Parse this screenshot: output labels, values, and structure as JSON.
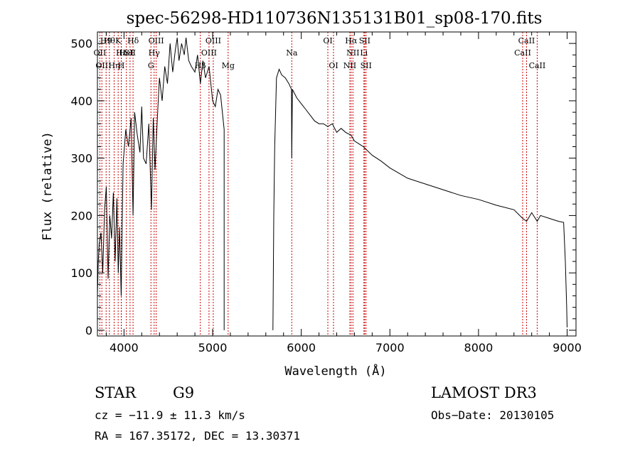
{
  "chart_data": {
    "type": "line",
    "title": "spec-56298-HD110736N135131B01_sp08-170.fits",
    "xlabel": "Wavelength (Å)",
    "ylabel": "Flux (relative)",
    "xlim": [
      3700,
      9100
    ],
    "ylim": [
      -10,
      520
    ],
    "xticks": [
      4000,
      5000,
      6000,
      7000,
      8000,
      9000
    ],
    "yticks": [
      0,
      100,
      200,
      300,
      400,
      500
    ],
    "grid": false,
    "gap": [
      5130,
      5680
    ],
    "series": [
      {
        "name": "Flux",
        "x": [
          3700,
          3710,
          3720,
          3740,
          3760,
          3780,
          3800,
          3820,
          3840,
          3860,
          3880,
          3900,
          3920,
          3935,
          3950,
          3968,
          3990,
          4020,
          4050,
          4080,
          4102,
          4120,
          4150,
          4180,
          4200,
          4220,
          4250,
          4280,
          4310,
          4330,
          4350,
          4380,
          4400,
          4430,
          4460,
          4490,
          4520,
          4550,
          4580,
          4600,
          4620,
          4650,
          4680,
          4700,
          4730,
          4760,
          4800,
          4830,
          4862,
          4890,
          4920,
          4960,
          5000,
          5030,
          5060,
          5090,
          5110,
          5130,
          5680,
          5690,
          5700,
          5720,
          5750,
          5780,
          5820,
          5860,
          5890,
          5893,
          5900,
          5950,
          6000,
          6050,
          6100,
          6150,
          6200,
          6250,
          6300,
          6350,
          6400,
          6450,
          6500,
          6563,
          6600,
          6700,
          6800,
          6900,
          7000,
          7200,
          7400,
          7600,
          7800,
          8000,
          8200,
          8400,
          8498,
          8542,
          8600,
          8662,
          8700,
          8800,
          8900,
          8960,
          8980,
          8995,
          9000
        ],
        "values": [
          60,
          120,
          150,
          170,
          100,
          210,
          250,
          90,
          200,
          160,
          240,
          120,
          230,
          100,
          180,
          60,
          290,
          350,
          320,
          370,
          200,
          380,
          340,
          310,
          390,
          300,
          290,
          360,
          210,
          370,
          280,
          380,
          440,
          400,
          460,
          430,
          500,
          450,
          490,
          510,
          470,
          500,
          480,
          510,
          470,
          460,
          450,
          480,
          430,
          470,
          440,
          460,
          400,
          390,
          420,
          410,
          380,
          350,
          0,
          200,
          320,
          440,
          455,
          445,
          440,
          430,
          420,
          300,
          420,
          405,
          395,
          385,
          375,
          365,
          360,
          360,
          355,
          360,
          345,
          352,
          345,
          340,
          330,
          320,
          305,
          295,
          283,
          265,
          255,
          245,
          235,
          228,
          218,
          210,
          195,
          190,
          205,
          190,
          200,
          195,
          190,
          188,
          120,
          40,
          5
        ]
      }
    ],
    "lines": [
      {
        "x": 3727,
        "label": "OII",
        "row": 2
      },
      {
        "x": 3750,
        "label": "OII",
        "row": 3
      },
      {
        "x": 3798,
        "label": "H9",
        "row": 1
      },
      {
        "x": 3835,
        "label": "Hθ",
        "row": 1
      },
      {
        "x": 3889,
        "label": "Hη",
        "row": 3
      },
      {
        "x": 3934,
        "label": "K",
        "row": 1
      },
      {
        "x": 3969,
        "label": "H",
        "row": 3
      },
      {
        "x": 3970,
        "label": "Hε",
        "row": 2
      },
      {
        "x": 4026,
        "label": "HeI",
        "row": 2
      },
      {
        "x": 4068,
        "label": "SII",
        "row": 2
      },
      {
        "x": 4102,
        "label": "Hδ",
        "row": 1
      },
      {
        "x": 4304,
        "label": "G",
        "row": 3
      },
      {
        "x": 4340,
        "label": "Hγ",
        "row": 2
      },
      {
        "x": 4363,
        "label": "OIII",
        "row": 1
      },
      {
        "x": 4861,
        "label": "Hβ",
        "row": 3
      },
      {
        "x": 4959,
        "label": "OIII",
        "row": 2
      },
      {
        "x": 5007,
        "label": "OIII",
        "row": 1
      },
      {
        "x": 5175,
        "label": "Mg",
        "row": 3
      },
      {
        "x": 5893,
        "label": "Na",
        "row": 2
      },
      {
        "x": 6300,
        "label": "OI",
        "row": 1
      },
      {
        "x": 6364,
        "label": "OI",
        "row": 3
      },
      {
        "x": 6548,
        "label": "NII",
        "row": 3
      },
      {
        "x": 6563,
        "label": "Hα",
        "row": 1
      },
      {
        "x": 6583,
        "label": "NII",
        "row": 2
      },
      {
        "x": 6707,
        "label": "Li",
        "row": 2
      },
      {
        "x": 6716,
        "label": "SII",
        "row": 1
      },
      {
        "x": 6731,
        "label": "SII",
        "row": 3
      },
      {
        "x": 8498,
        "label": "CaII",
        "row": 2
      },
      {
        "x": 8542,
        "label": "CaII",
        "row": 1
      },
      {
        "x": 8662,
        "label": "CaII",
        "row": 3
      }
    ]
  },
  "info": {
    "class_label": "STAR",
    "subclass": "G9",
    "survey": "LAMOST DR3",
    "cz": "cz = −11.9 ± 11.3 km/s",
    "obs_date": "Obs−Date: 20130105",
    "coords": "RA = 167.35172, DEC =  13.30371"
  },
  "colors": {
    "axis": "#000000",
    "line": "#000000",
    "marker": "#cc0000"
  }
}
